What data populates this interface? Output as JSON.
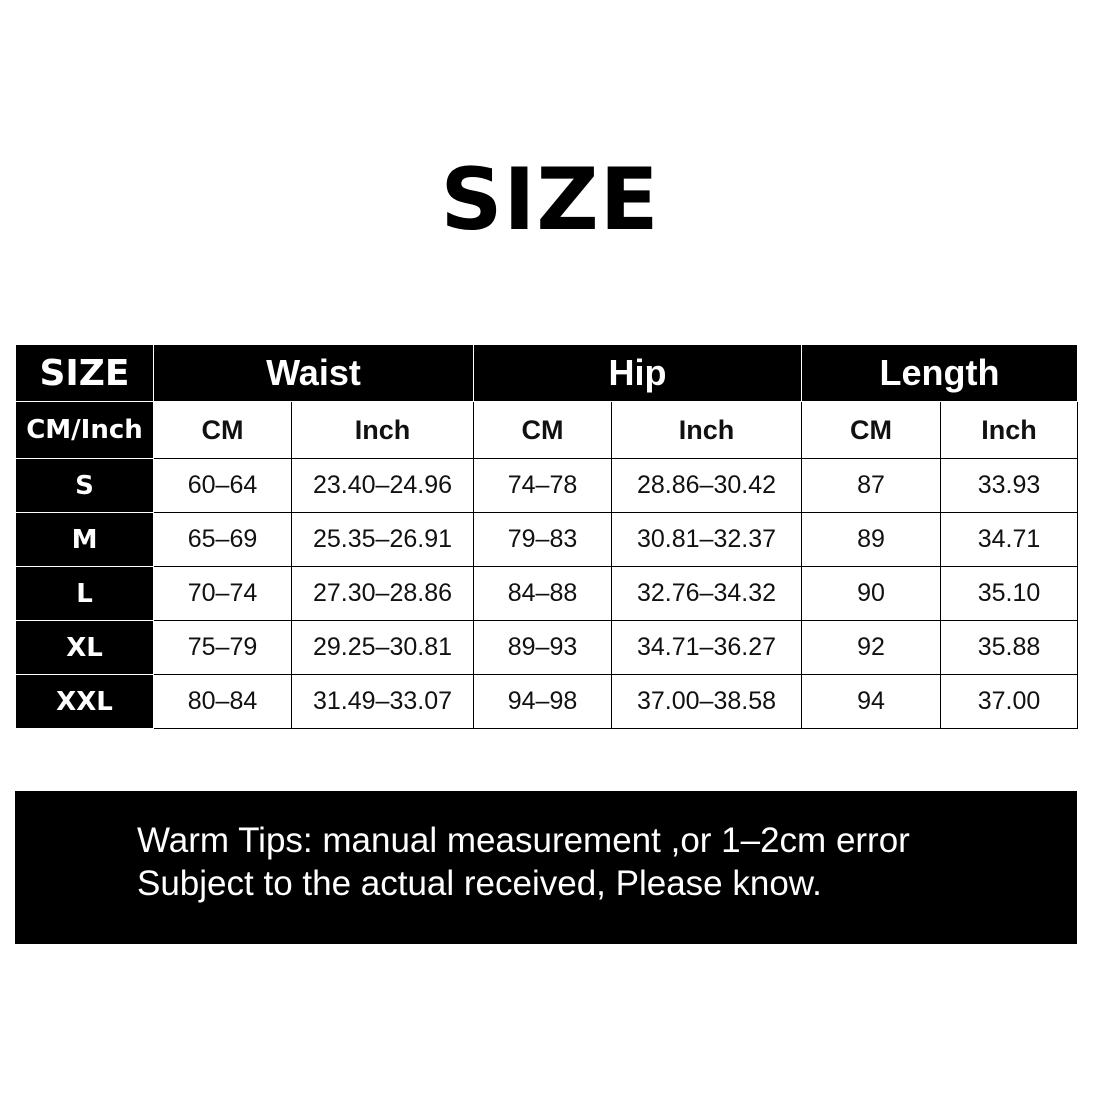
{
  "title": "SIZE",
  "table": {
    "corner": "SIZE",
    "groups": [
      "Waist",
      "Hip",
      "Length"
    ],
    "unit_label": "CM/Inch",
    "subheaders": [
      "CM",
      "Inch",
      "CM",
      "Inch",
      "CM",
      "Inch"
    ],
    "rows": [
      {
        "size": "S",
        "values": [
          "60–64",
          "23.40–24.96",
          "74–78",
          "28.86–30.42",
          "87",
          "33.93"
        ]
      },
      {
        "size": "M",
        "values": [
          "65–69",
          "25.35–26.91",
          "79–83",
          "30.81–32.37",
          "89",
          "34.71"
        ]
      },
      {
        "size": "L",
        "values": [
          "70–74",
          "27.30–28.86",
          "84–88",
          "32.76–34.32",
          "90",
          "35.10"
        ]
      },
      {
        "size": "XL",
        "values": [
          "75–79",
          "29.25–30.81",
          "89–93",
          "34.71–36.27",
          "92",
          "35.88"
        ]
      },
      {
        "size": "XXL",
        "values": [
          "80–84",
          "31.49–33.07",
          "94–98",
          "37.00–38.58",
          "94",
          "37.00"
        ]
      }
    ]
  },
  "tips": {
    "line1": "Warm Tips: manual measurement ,or 1–2cm error",
    "line2": "Subject to the actual received, Please know."
  }
}
